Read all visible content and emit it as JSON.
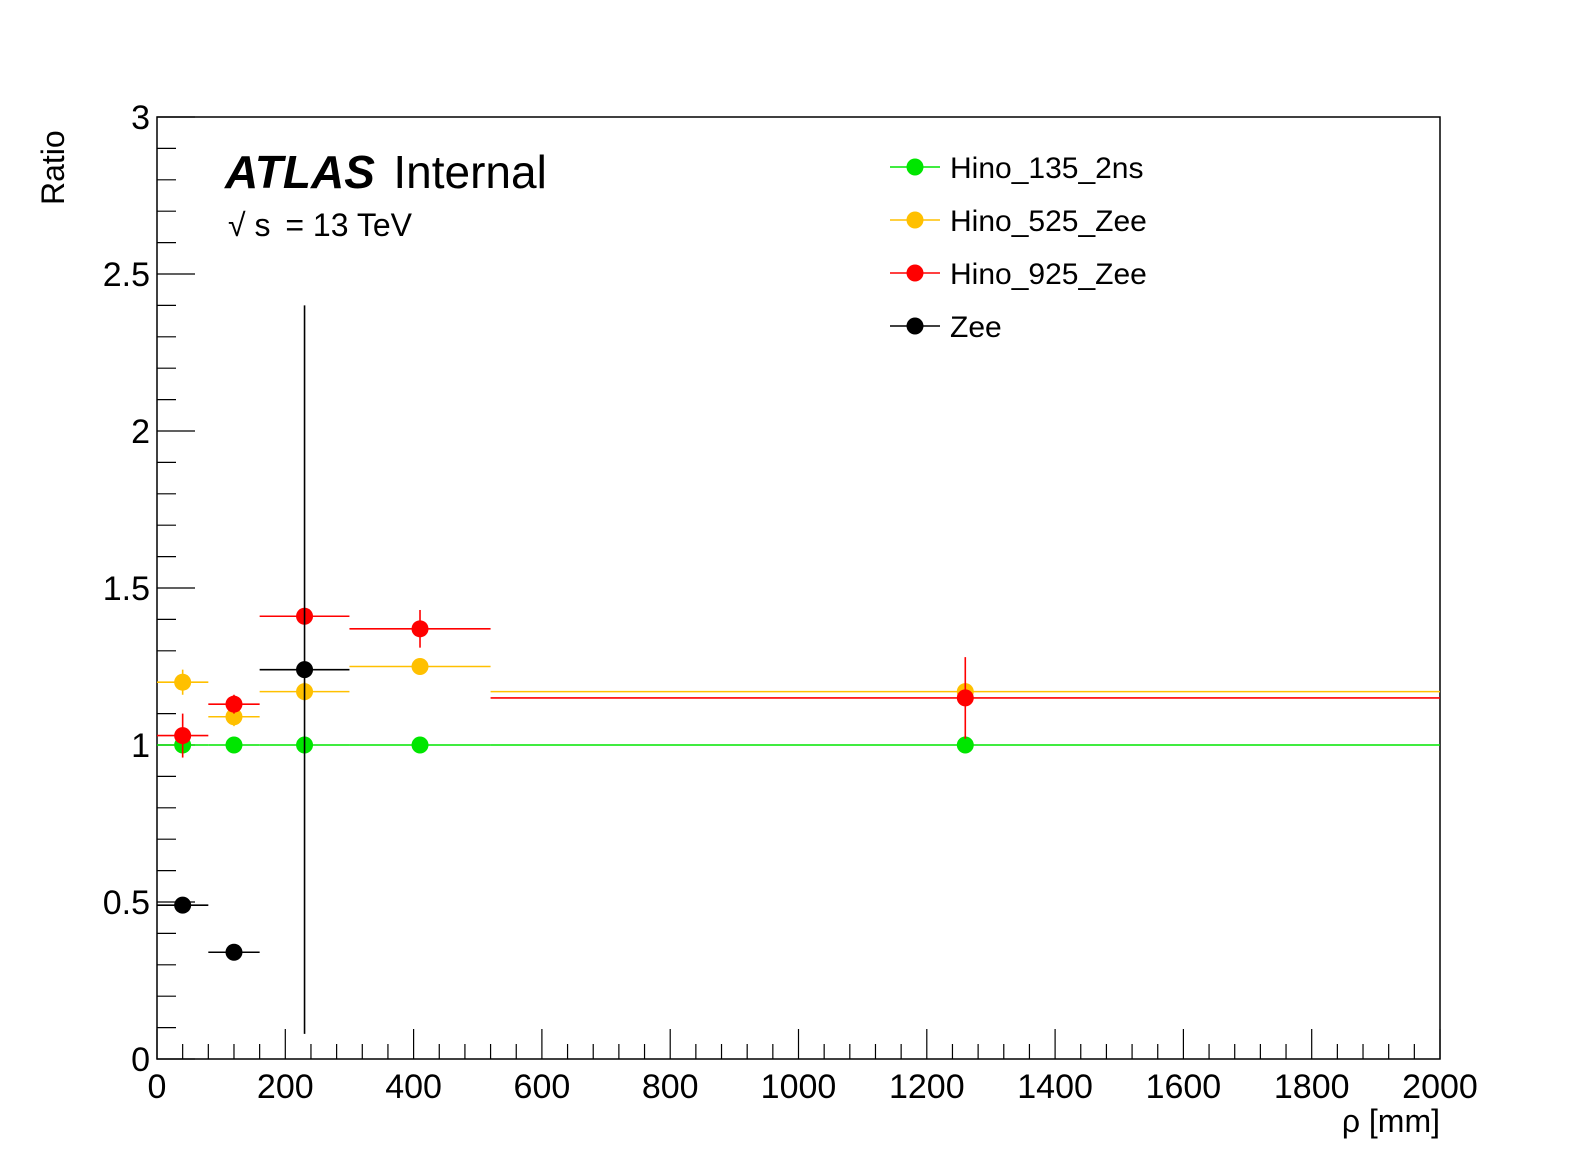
{
  "chart_data": {
    "type": "scatter",
    "xlabel": "ρ [mm]",
    "ylabel": "Ratio",
    "xlim": [
      0,
      2000
    ],
    "ylim": [
      0,
      3
    ],
    "x_ticks": [
      "0",
      "200",
      "400",
      "600",
      "800",
      "1000",
      "1200",
      "1400",
      "1600",
      "1800",
      "2000"
    ],
    "y_ticks": [
      "0",
      "0.5",
      "1",
      "1.5",
      "2",
      "2.5",
      "3"
    ],
    "grid": false,
    "legend_position": "top-right",
    "annotations": {
      "experiment": "ATLAS",
      "status": "Internal",
      "sqrt_symbol": "√",
      "energy_var": "s",
      "energy_value": "= 13 TeV"
    },
    "bins": [
      [
        0,
        80
      ],
      [
        80,
        160
      ],
      [
        160,
        300
      ],
      [
        300,
        520
      ],
      [
        520,
        2000
      ]
    ],
    "series": [
      {
        "name": "Hino_135_2ns",
        "color": "#00e600",
        "points": [
          {
            "x": 40,
            "y": 1.0,
            "xlo": 0,
            "xhi": 80,
            "yerr": 0.0
          },
          {
            "x": 120,
            "y": 1.0,
            "xlo": 80,
            "xhi": 160,
            "yerr": 0.0
          },
          {
            "x": 230,
            "y": 1.0,
            "xlo": 160,
            "xhi": 300,
            "yerr": 0.0
          },
          {
            "x": 410,
            "y": 1.0,
            "xlo": 300,
            "xhi": 520,
            "yerr": 0.0
          },
          {
            "x": 1260,
            "y": 1.0,
            "xlo": 520,
            "xhi": 2000,
            "yerr": 0.0
          }
        ]
      },
      {
        "name": "Hino_525_Zee",
        "color": "#ffc000",
        "points": [
          {
            "x": 40,
            "y": 1.2,
            "xlo": 0,
            "xhi": 80,
            "yerr": 0.04
          },
          {
            "x": 120,
            "y": 1.09,
            "xlo": 80,
            "xhi": 160,
            "yerr": 0.03
          },
          {
            "x": 230,
            "y": 1.17,
            "xlo": 160,
            "xhi": 300,
            "yerr": 0.03
          },
          {
            "x": 410,
            "y": 1.25,
            "xlo": 300,
            "xhi": 520,
            "yerr": 0.02
          },
          {
            "x": 1260,
            "y": 1.17,
            "xlo": 520,
            "xhi": 2000,
            "yerr": 0.03
          }
        ]
      },
      {
        "name": "Hino_925_Zee",
        "color": "#ff0000",
        "points": [
          {
            "x": 40,
            "y": 1.03,
            "xlo": 0,
            "xhi": 80,
            "yerr": 0.07
          },
          {
            "x": 120,
            "y": 1.13,
            "xlo": 80,
            "xhi": 160,
            "yerr": 0.03
          },
          {
            "x": 230,
            "y": 1.41,
            "xlo": 160,
            "xhi": 300,
            "yerr": 0.0
          },
          {
            "x": 410,
            "y": 1.37,
            "xlo": 300,
            "xhi": 520,
            "yerr": 0.06
          },
          {
            "x": 1260,
            "y": 1.15,
            "xlo": 520,
            "xhi": 2000,
            "yerr": 0.13
          }
        ]
      },
      {
        "name": "Zee",
        "color": "#000000",
        "points": [
          {
            "x": 40,
            "y": 0.49,
            "xlo": 0,
            "xhi": 80,
            "yerr": 0.0
          },
          {
            "x": 120,
            "y": 0.34,
            "xlo": 80,
            "xhi": 160,
            "yerr": 0.0
          },
          {
            "x": 230,
            "y": 1.24,
            "xlo": 160,
            "xhi": 300,
            "yerr": 1.16
          }
        ]
      }
    ]
  }
}
